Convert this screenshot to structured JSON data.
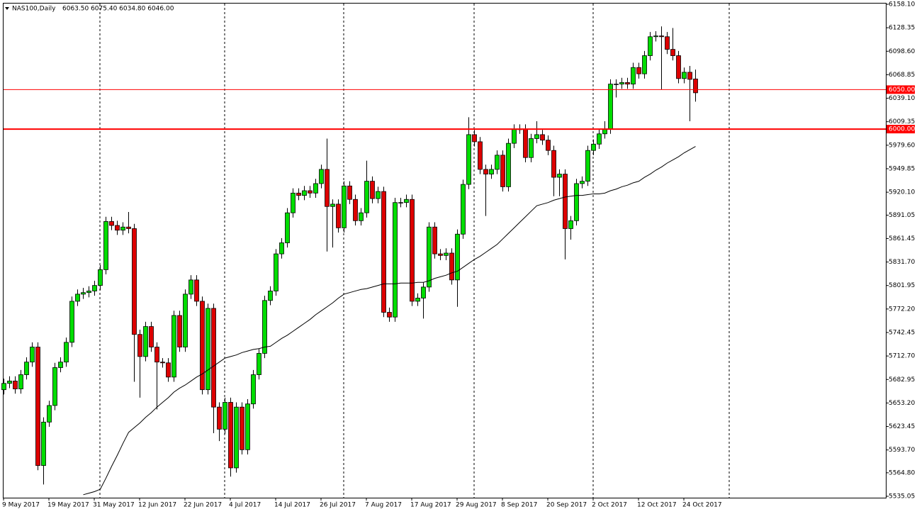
{
  "chart_data": {
    "type": "candlestick",
    "title": "NAS100,Daily",
    "ohlc_text": "6063.50 6075.40 6034.80 6046.00",
    "up_color": "#00dd00",
    "down_color": "#dd0000",
    "ylim": [
      5535.05,
      6158.1
    ],
    "yticks": [
      {
        "value": 6158.1,
        "label": "6158.10"
      },
      {
        "value": 6128.35,
        "label": "6128.35"
      },
      {
        "value": 6098.6,
        "label": "6098.60"
      },
      {
        "value": 6068.85,
        "label": "6068.85"
      },
      {
        "value": 6039.1,
        "label": "6039.10"
      },
      {
        "value": 6009.35,
        "label": "6009.35"
      },
      {
        "value": 5979.6,
        "label": "5979.60"
      },
      {
        "value": 5949.85,
        "label": "5949.85"
      },
      {
        "value": 5920.1,
        "label": "5920.10"
      },
      {
        "value": 5891.05,
        "label": "5891.05"
      },
      {
        "value": 5861.45,
        "label": "5861.45"
      },
      {
        "value": 5831.7,
        "label": "5831.70"
      },
      {
        "value": 5801.95,
        "label": "5801.95"
      },
      {
        "value": 5772.2,
        "label": "5772.20"
      },
      {
        "value": 5742.45,
        "label": "5742.45"
      },
      {
        "value": 5712.7,
        "label": "5712.70"
      },
      {
        "value": 5682.95,
        "label": "5682.95"
      },
      {
        "value": 5653.2,
        "label": "5653.20"
      },
      {
        "value": 5623.45,
        "label": "5623.45"
      },
      {
        "value": 5593.7,
        "label": "5593.70"
      },
      {
        "value": 5564.8,
        "label": "5564.80"
      },
      {
        "value": 5535.05,
        "label": "5535.05"
      }
    ],
    "levels": [
      {
        "value": 6050,
        "label": "6050.00",
        "color": "#ff0000",
        "width": 1
      },
      {
        "value": 6000,
        "label": "6000.00",
        "color": "#ff0000",
        "width": 2
      }
    ],
    "categories": [
      "9 May 2017",
      null,
      null,
      null,
      null,
      null,
      null,
      null,
      "19 May 2017",
      null,
      null,
      null,
      null,
      null,
      null,
      null,
      "31 May 2017",
      null,
      null,
      null,
      null,
      null,
      null,
      null,
      "12 Jun 2017",
      null,
      null,
      null,
      null,
      null,
      null,
      null,
      "22 Jun 2017",
      null,
      null,
      null,
      null,
      null,
      null,
      null,
      "4 Jul 2017",
      null,
      null,
      null,
      null,
      null,
      null,
      null,
      "14 Jul 2017",
      null,
      null,
      null,
      null,
      null,
      null,
      null,
      "26 Jul 2017",
      null,
      null,
      null,
      null,
      null,
      null,
      null,
      "7 Aug 2017",
      null,
      null,
      null,
      null,
      null,
      null,
      null,
      "17 Aug 2017",
      null,
      null,
      null,
      null,
      null,
      null,
      null,
      "29 Aug 2017",
      null,
      null,
      null,
      null,
      null,
      null,
      null,
      "8 Sep 2017",
      null,
      null,
      null,
      null,
      null,
      null,
      null,
      "20 Sep 2017",
      null,
      null,
      null,
      null,
      null,
      null,
      null,
      "2 Oct 2017",
      null,
      null,
      null,
      null,
      null,
      null,
      null,
      "12 Oct 2017",
      null,
      null,
      null,
      null,
      null,
      null,
      null,
      "24 Oct 2017",
      null,
      null
    ],
    "open": [
      5670,
      5678,
      5681,
      5671,
      5689,
      5705,
      5724,
      5574,
      5629,
      5650,
      5698,
      5705,
      5730,
      5782,
      5791,
      5793,
      5795,
      5802,
      5822,
      5883,
      5878,
      5872,
      5876,
      5874,
      5740,
      5712,
      5750,
      5724,
      5705,
      5704,
      5686,
      5764,
      5724,
      5791,
      5809,
      5782,
      5670,
      5773,
      5648,
      5620,
      5654,
      5571,
      5648,
      5594,
      5652,
      5689,
      5716,
      5783,
      5795,
      5842,
      5856,
      5894,
      5919,
      5916,
      5922,
      5919,
      5931,
      5949,
      5902,
      5905,
      5875,
      5928,
      5911,
      5884,
      5894,
      5934,
      5912,
      5921,
      5768,
      5762,
      5907,
      5907,
      5911,
      5782,
      5786,
      5800,
      5876,
      5842,
      5840,
      5843,
      5809,
      5867,
      5930,
      5993,
      5984,
      5949,
      5943,
      5949,
      5967,
      5927,
      5982,
      6000,
      6000,
      5964,
      5988,
      5993,
      5986,
      5973,
      5939,
      5943,
      5874,
      5884,
      5931,
      5934,
      5973,
      5981,
      5994,
      6000,
      6057,
      6057,
      6059,
      6057,
      6078,
      6070,
      6093,
      6117,
      6118,
      6117,
      6101,
      6093,
      6064,
      6072,
      6063.5
    ],
    "high": [
      5684,
      5687,
      5687,
      5695,
      5711,
      5730,
      5730,
      5635,
      5656,
      5704,
      5711,
      5736,
      5788,
      5797,
      5799,
      5801,
      5808,
      5828,
      5889,
      5889,
      5884,
      5882,
      5895,
      5880,
      5746,
      5756,
      5756,
      5730,
      5710,
      5710,
      5770,
      5770,
      5797,
      5815,
      5815,
      5788,
      5779,
      5779,
      5654,
      5660,
      5660,
      5654,
      5654,
      5658,
      5695,
      5722,
      5789,
      5801,
      5848,
      5862,
      5900,
      5925,
      5925,
      5928,
      5928,
      5937,
      5955,
      5988,
      5911,
      5911,
      5934,
      5934,
      5917,
      5900,
      5960,
      5940,
      5927,
      5927,
      5774,
      5913,
      5913,
      5917,
      5917,
      5792,
      5806,
      5882,
      5882,
      5848,
      5849,
      5849,
      5873,
      5936,
      6015,
      5999,
      5990,
      5955,
      5955,
      5973,
      5973,
      5988,
      6006,
      6006,
      6006,
      5994,
      6010,
      5999,
      5992,
      5979,
      5949,
      5949,
      5890,
      5937,
      5940,
      5979,
      5987,
      6000,
      6010,
      6063,
      6063,
      6065,
      6065,
      6084,
      6084,
      6099,
      6123,
      6124,
      6130,
      6123,
      6128,
      6099,
      6078,
      6080,
      6075.4
    ],
    "low": [
      5664,
      5672,
      5665,
      5665,
      5683,
      5699,
      5568,
      5550,
      5623,
      5644,
      5692,
      5699,
      5724,
      5776,
      5785,
      5787,
      5789,
      5796,
      5816,
      5872,
      5866,
      5866,
      5868,
      5680,
      5660,
      5706,
      5718,
      5645,
      5698,
      5680,
      5680,
      5718,
      5718,
      5785,
      5776,
      5664,
      5664,
      5615,
      5605,
      5614,
      5560,
      5565,
      5588,
      5588,
      5646,
      5683,
      5710,
      5777,
      5789,
      5836,
      5850,
      5888,
      5910,
      5910,
      5913,
      5913,
      5925,
      5845,
      5850,
      5869,
      5869,
      5905,
      5878,
      5878,
      5888,
      5906,
      5906,
      5762,
      5756,
      5756,
      5901,
      5901,
      5776,
      5776,
      5760,
      5794,
      5836,
      5834,
      5834,
      5803,
      5775,
      5861,
      5924,
      5978,
      5943,
      5890,
      5937,
      5943,
      5921,
      5921,
      5976,
      5994,
      5958,
      5958,
      5982,
      5980,
      5967,
      5915,
      5915,
      5835,
      5860,
      5878,
      5925,
      5928,
      5967,
      5975,
      5988,
      5994,
      6040,
      6051,
      6051,
      6051,
      6064,
      6064,
      6087,
      6111,
      6050,
      6095,
      6087,
      6058,
      6058,
      6010,
      6034.8
    ],
    "close": [
      5678,
      5681,
      5671,
      5689,
      5705,
      5724,
      5574,
      5629,
      5650,
      5698,
      5705,
      5730,
      5782,
      5791,
      5793,
      5795,
      5802,
      5822,
      5883,
      5878,
      5872,
      5876,
      5874,
      5740,
      5712,
      5750,
      5724,
      5705,
      5704,
      5686,
      5764,
      5724,
      5791,
      5809,
      5782,
      5670,
      5773,
      5648,
      5620,
      5654,
      5571,
      5648,
      5594,
      5652,
      5689,
      5716,
      5783,
      5795,
      5842,
      5856,
      5894,
      5919,
      5916,
      5922,
      5919,
      5931,
      5949,
      5902,
      5905,
      5875,
      5928,
      5911,
      5884,
      5894,
      5934,
      5912,
      5921,
      5768,
      5762,
      5907,
      5907,
      5911,
      5782,
      5786,
      5800,
      5876,
      5842,
      5840,
      5843,
      5809,
      5867,
      5930,
      5993,
      5984,
      5949,
      5943,
      5949,
      5967,
      5927,
      5982,
      6000,
      6000,
      5964,
      5988,
      5993,
      5986,
      5973,
      5939,
      5943,
      5874,
      5884,
      5931,
      5934,
      5973,
      5981,
      5994,
      6000,
      6057,
      6057,
      6059,
      6057,
      6078,
      6070,
      6093,
      6117,
      6118,
      6117,
      6101,
      6093,
      6064,
      6072,
      6063,
      6046
    ],
    "moving_average": {
      "color": "#000000",
      "values": [
        null,
        null,
        null,
        null,
        null,
        null,
        null,
        null,
        null,
        null,
        null,
        null,
        null,
        null,
        5537,
        5539,
        5541,
        5544,
        5558,
        5573,
        5587,
        5602,
        5616,
        5622,
        5628,
        5635,
        5641,
        5648,
        5654,
        5660,
        5667,
        5672,
        5676,
        5681,
        5686,
        5690,
        5695,
        5700,
        5705,
        5710,
        5712,
        5714,
        5717,
        5719,
        5721,
        5722,
        5724,
        5725,
        5730,
        5735,
        5739,
        5744,
        5749,
        5754,
        5759,
        5765,
        5770,
        5775,
        5780,
        5786,
        5791,
        5793,
        5795,
        5797,
        5798,
        5800,
        5802,
        5804,
        5804,
        5804,
        5805,
        5805,
        5805,
        5806,
        5806,
        5808,
        5811,
        5813,
        5815,
        5818,
        5820,
        5825,
        5830,
        5835,
        5839,
        5844,
        5849,
        5854,
        5861,
        5868,
        5875,
        5882,
        5889,
        5896,
        5903,
        5905,
        5907,
        5910,
        5912,
        5914,
        5915,
        5916,
        5916,
        5917,
        5918,
        5918,
        5919,
        5922,
        5924,
        5927,
        5929,
        5932,
        5934,
        5939,
        5943,
        5948,
        5952,
        5957,
        5961,
        5965,
        5970,
        5974,
        5978
      ]
    }
  }
}
